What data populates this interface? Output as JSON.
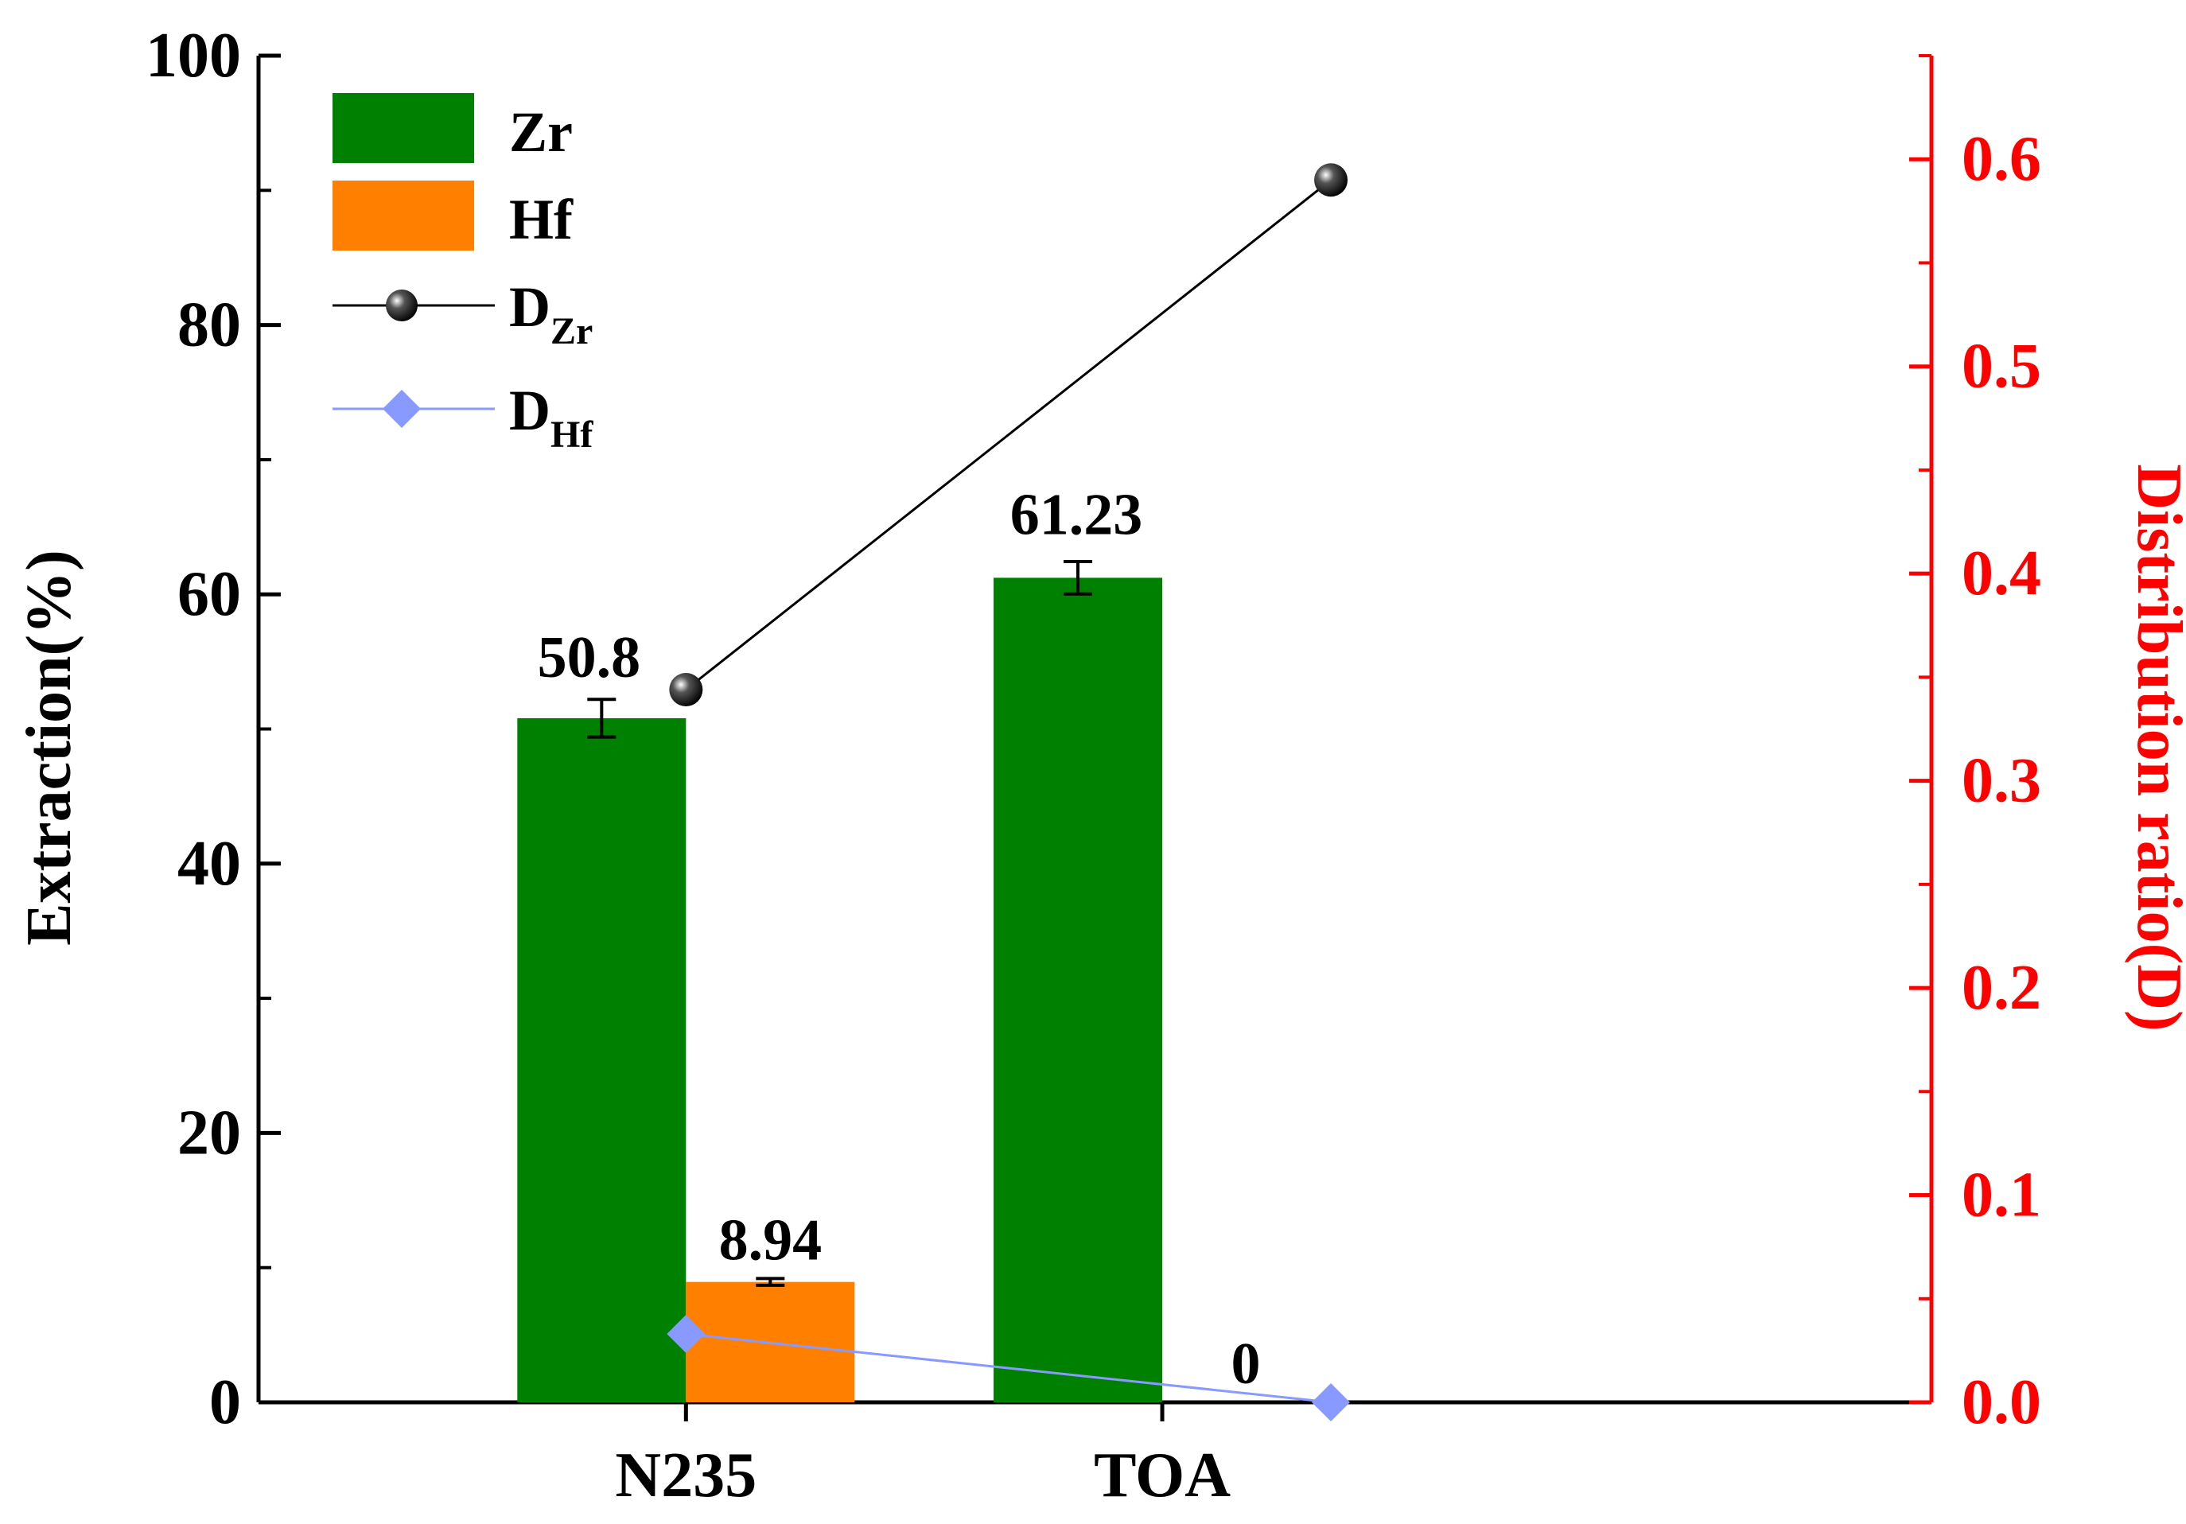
{
  "chart_data": {
    "type": "bar",
    "title": "",
    "categories": [
      "N235",
      "TOA"
    ],
    "xlabel": "",
    "ylabel": "Extraction(%)",
    "ylim": [
      0,
      100
    ],
    "yticks": [
      "0",
      "20",
      "40",
      "60",
      "80",
      "100"
    ],
    "y2label": "Distribution ratio(D)",
    "y2lim": [
      0,
      0.65
    ],
    "y2ticks": [
      "0.0",
      "0.1",
      "0.2",
      "0.3",
      "0.4",
      "0.5",
      "0.6"
    ],
    "bar_series": [
      {
        "name": "Zr",
        "color": "#008000",
        "values": [
          50.8,
          61.23
        ],
        "errors": [
          1.4,
          1.2
        ],
        "labels": [
          "50.8",
          "61.23"
        ]
      },
      {
        "name": "Hf",
        "color": "#ff8000",
        "values": [
          8.94,
          0
        ],
        "errors": [
          0.25,
          0
        ],
        "labels": [
          "8.94",
          "0"
        ]
      }
    ],
    "line_series": [
      {
        "name": "D",
        "subscript": "Zr",
        "color": "#000000",
        "marker": "sphere",
        "values": [
          0.344,
          0.59
        ]
      },
      {
        "name": "D",
        "subscript": "Hf",
        "color": "#8899ff",
        "marker": "diamond",
        "values": [
          0.033,
          0.0
        ]
      }
    ],
    "legend_position": "top-left",
    "axis_color_right": "#ff0000"
  }
}
